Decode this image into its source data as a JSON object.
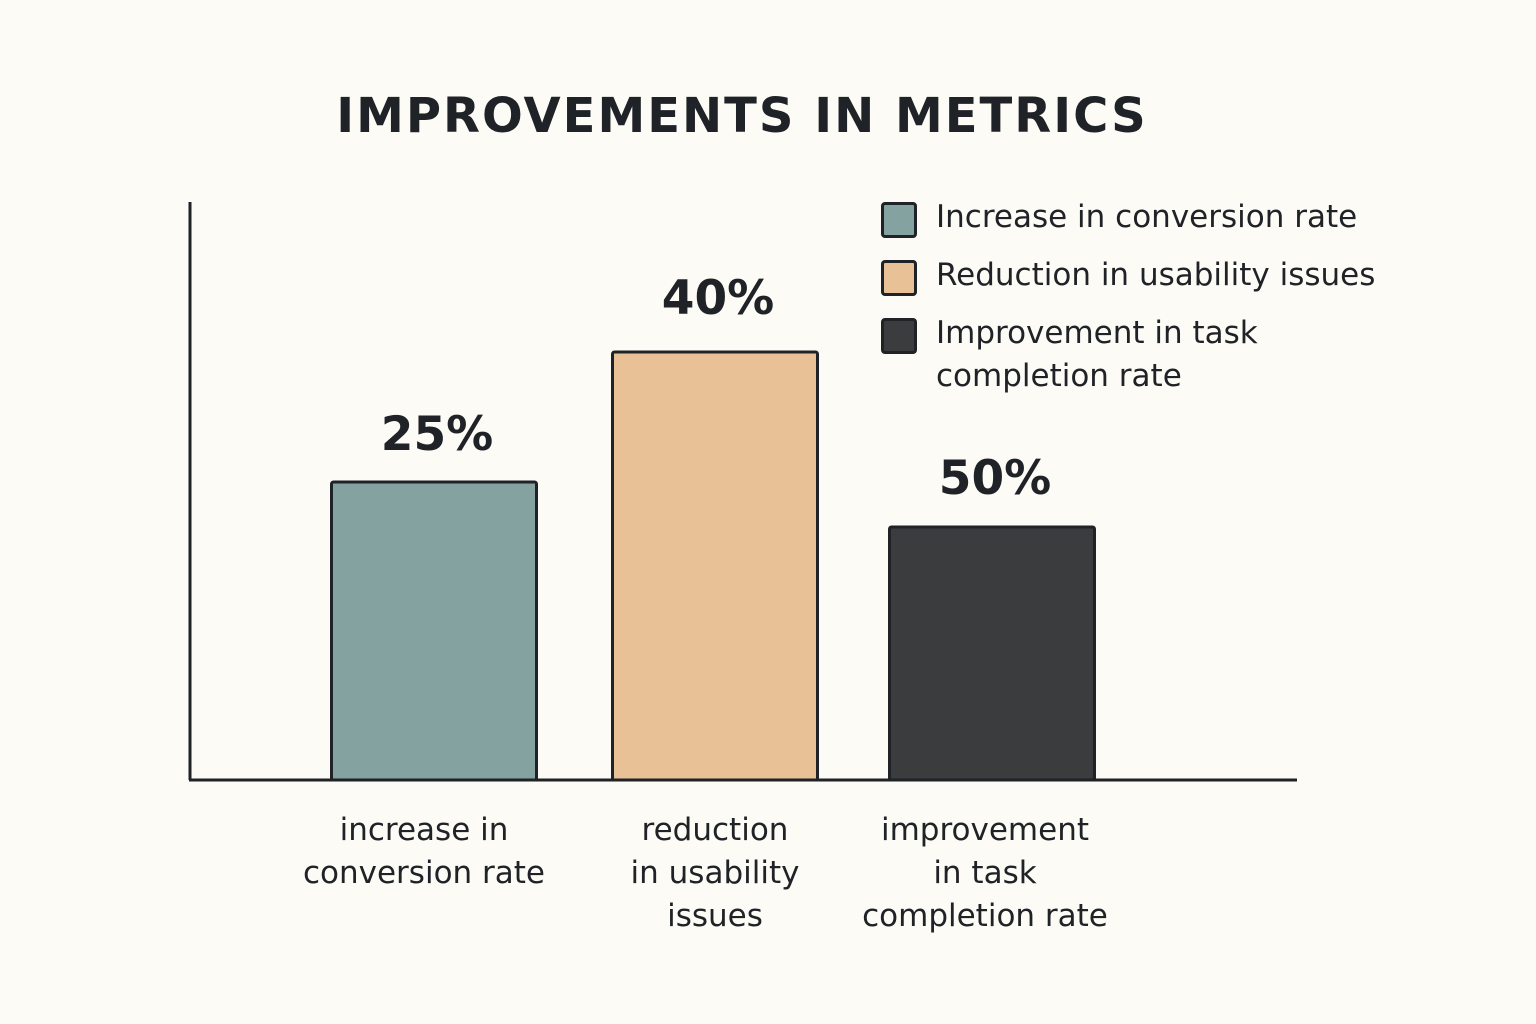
{
  "chart_data": {
    "type": "bar",
    "title": "IMPROVEMENTS IN METRICS",
    "categories": [
      "increase in conversion rate",
      "reduction in usability issues",
      "improvement in task completion rate"
    ],
    "category_label_lines": [
      [
        "increase in",
        "conversion rate"
      ],
      [
        "reduction",
        "in usability",
        "issues"
      ],
      [
        "improvement",
        "in task",
        "completion rate"
      ]
    ],
    "values": [
      25,
      40,
      50
    ],
    "value_labels": [
      "25%",
      "40%",
      "50%"
    ],
    "colors": [
      "#84a2a0",
      "#e8c196",
      "#3a3c3e"
    ],
    "legend": {
      "placement": "top-right",
      "entries": [
        {
          "label": "Increase in conversion rate",
          "color": "#84a2a0"
        },
        {
          "label": "Reduction in usability issues",
          "color": "#e8c196"
        },
        {
          "label": "Improvement in task completion rate",
          "color": "#3a3c3e"
        }
      ]
    },
    "xlabel": "",
    "ylabel": "",
    "grid": false
  }
}
